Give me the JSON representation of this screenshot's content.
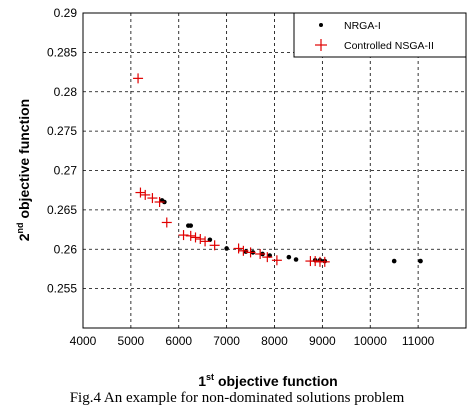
{
  "chart_data": {
    "type": "scatter",
    "xlabel": {
      "base": "1",
      "sup": "st",
      "rest": " objective function"
    },
    "ylabel": {
      "base": "2",
      "sup": "nd",
      "rest": " objective function"
    },
    "xlim": [
      4000,
      12000
    ],
    "ylim": [
      0.25,
      0.29
    ],
    "xticks": [
      4000,
      5000,
      6000,
      7000,
      8000,
      9000,
      10000,
      11000
    ],
    "yticks": [
      0.255,
      0.26,
      0.265,
      0.27,
      0.275,
      0.28,
      0.285,
      0.29
    ],
    "grid": true,
    "legend_position": "top-right",
    "series": [
      {
        "name": "NRGA-I",
        "marker": "dot",
        "color": "#000000",
        "x": [
          5650,
          5700,
          6200,
          6250,
          6650,
          7000,
          7400,
          7550,
          7750,
          7900,
          8300,
          8450,
          8850,
          8950,
          9050,
          10500,
          11050
        ],
        "y": [
          0.2662,
          0.266,
          0.263,
          0.263,
          0.2612,
          0.2601,
          0.2597,
          0.2596,
          0.2594,
          0.2592,
          0.259,
          0.2587,
          0.2586,
          0.2586,
          0.2585,
          0.2585,
          0.2585
        ]
      },
      {
        "name": "Controlled NSGA-II",
        "marker": "plus",
        "color": "#e00000",
        "x": [
          5150,
          5200,
          5300,
          5450,
          5600,
          5750,
          6100,
          6250,
          6350,
          6450,
          6550,
          6750,
          7250,
          7350,
          7500,
          7700,
          7850,
          8050,
          8750,
          8850,
          8950,
          9050
        ],
        "y": [
          0.2817,
          0.2672,
          0.2669,
          0.2665,
          0.266,
          0.2634,
          0.2618,
          0.2617,
          0.2615,
          0.2613,
          0.261,
          0.2605,
          0.2601,
          0.2598,
          0.2596,
          0.2594,
          0.259,
          0.2586,
          0.2585,
          0.2585,
          0.2584,
          0.2584
        ]
      }
    ]
  },
  "caption": "Fig.4 An example for non-dominated solutions problem"
}
